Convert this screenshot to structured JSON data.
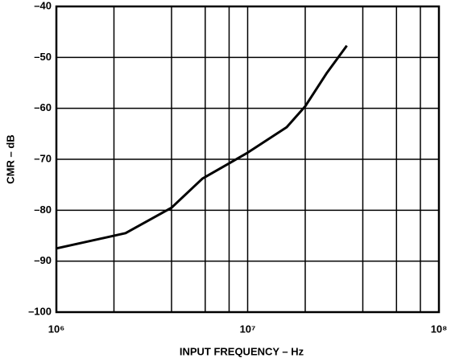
{
  "chart_data": {
    "type": "line",
    "xlabel": "INPUT FREQUENCY – Hz",
    "ylabel": "CMR – dB",
    "xscale": "log",
    "grid": true,
    "xlim": [
      1000000,
      100000000
    ],
    "ylim": [
      -100,
      -40
    ],
    "xticks": [
      {
        "value": 1000000,
        "label": "10⁶"
      },
      {
        "value": 10000000,
        "label": "10⁷"
      },
      {
        "value": 100000000,
        "label": "10⁸"
      }
    ],
    "minor_xticks": [
      2000000,
      4000000,
      6000000,
      8000000,
      20000000,
      40000000,
      60000000,
      80000000
    ],
    "yticks": [
      {
        "value": -40,
        "label": "–40"
      },
      {
        "value": -50,
        "label": "–50"
      },
      {
        "value": -60,
        "label": "–60"
      },
      {
        "value": -70,
        "label": "–70"
      },
      {
        "value": -80,
        "label": "–80"
      },
      {
        "value": -90,
        "label": "–90"
      },
      {
        "value": -100,
        "label": "–100"
      }
    ],
    "series": [
      {
        "color": "#000000",
        "x": [
          1000000,
          2300000,
          4000000,
          5800000,
          8000000,
          10000000,
          16000000,
          20000000,
          26000000,
          33000000
        ],
        "values": [
          -87.5,
          -84.5,
          -79.5,
          -73.8,
          -70.8,
          -68.7,
          -63.7,
          -59.6,
          -53,
          -47.7
        ]
      }
    ]
  }
}
